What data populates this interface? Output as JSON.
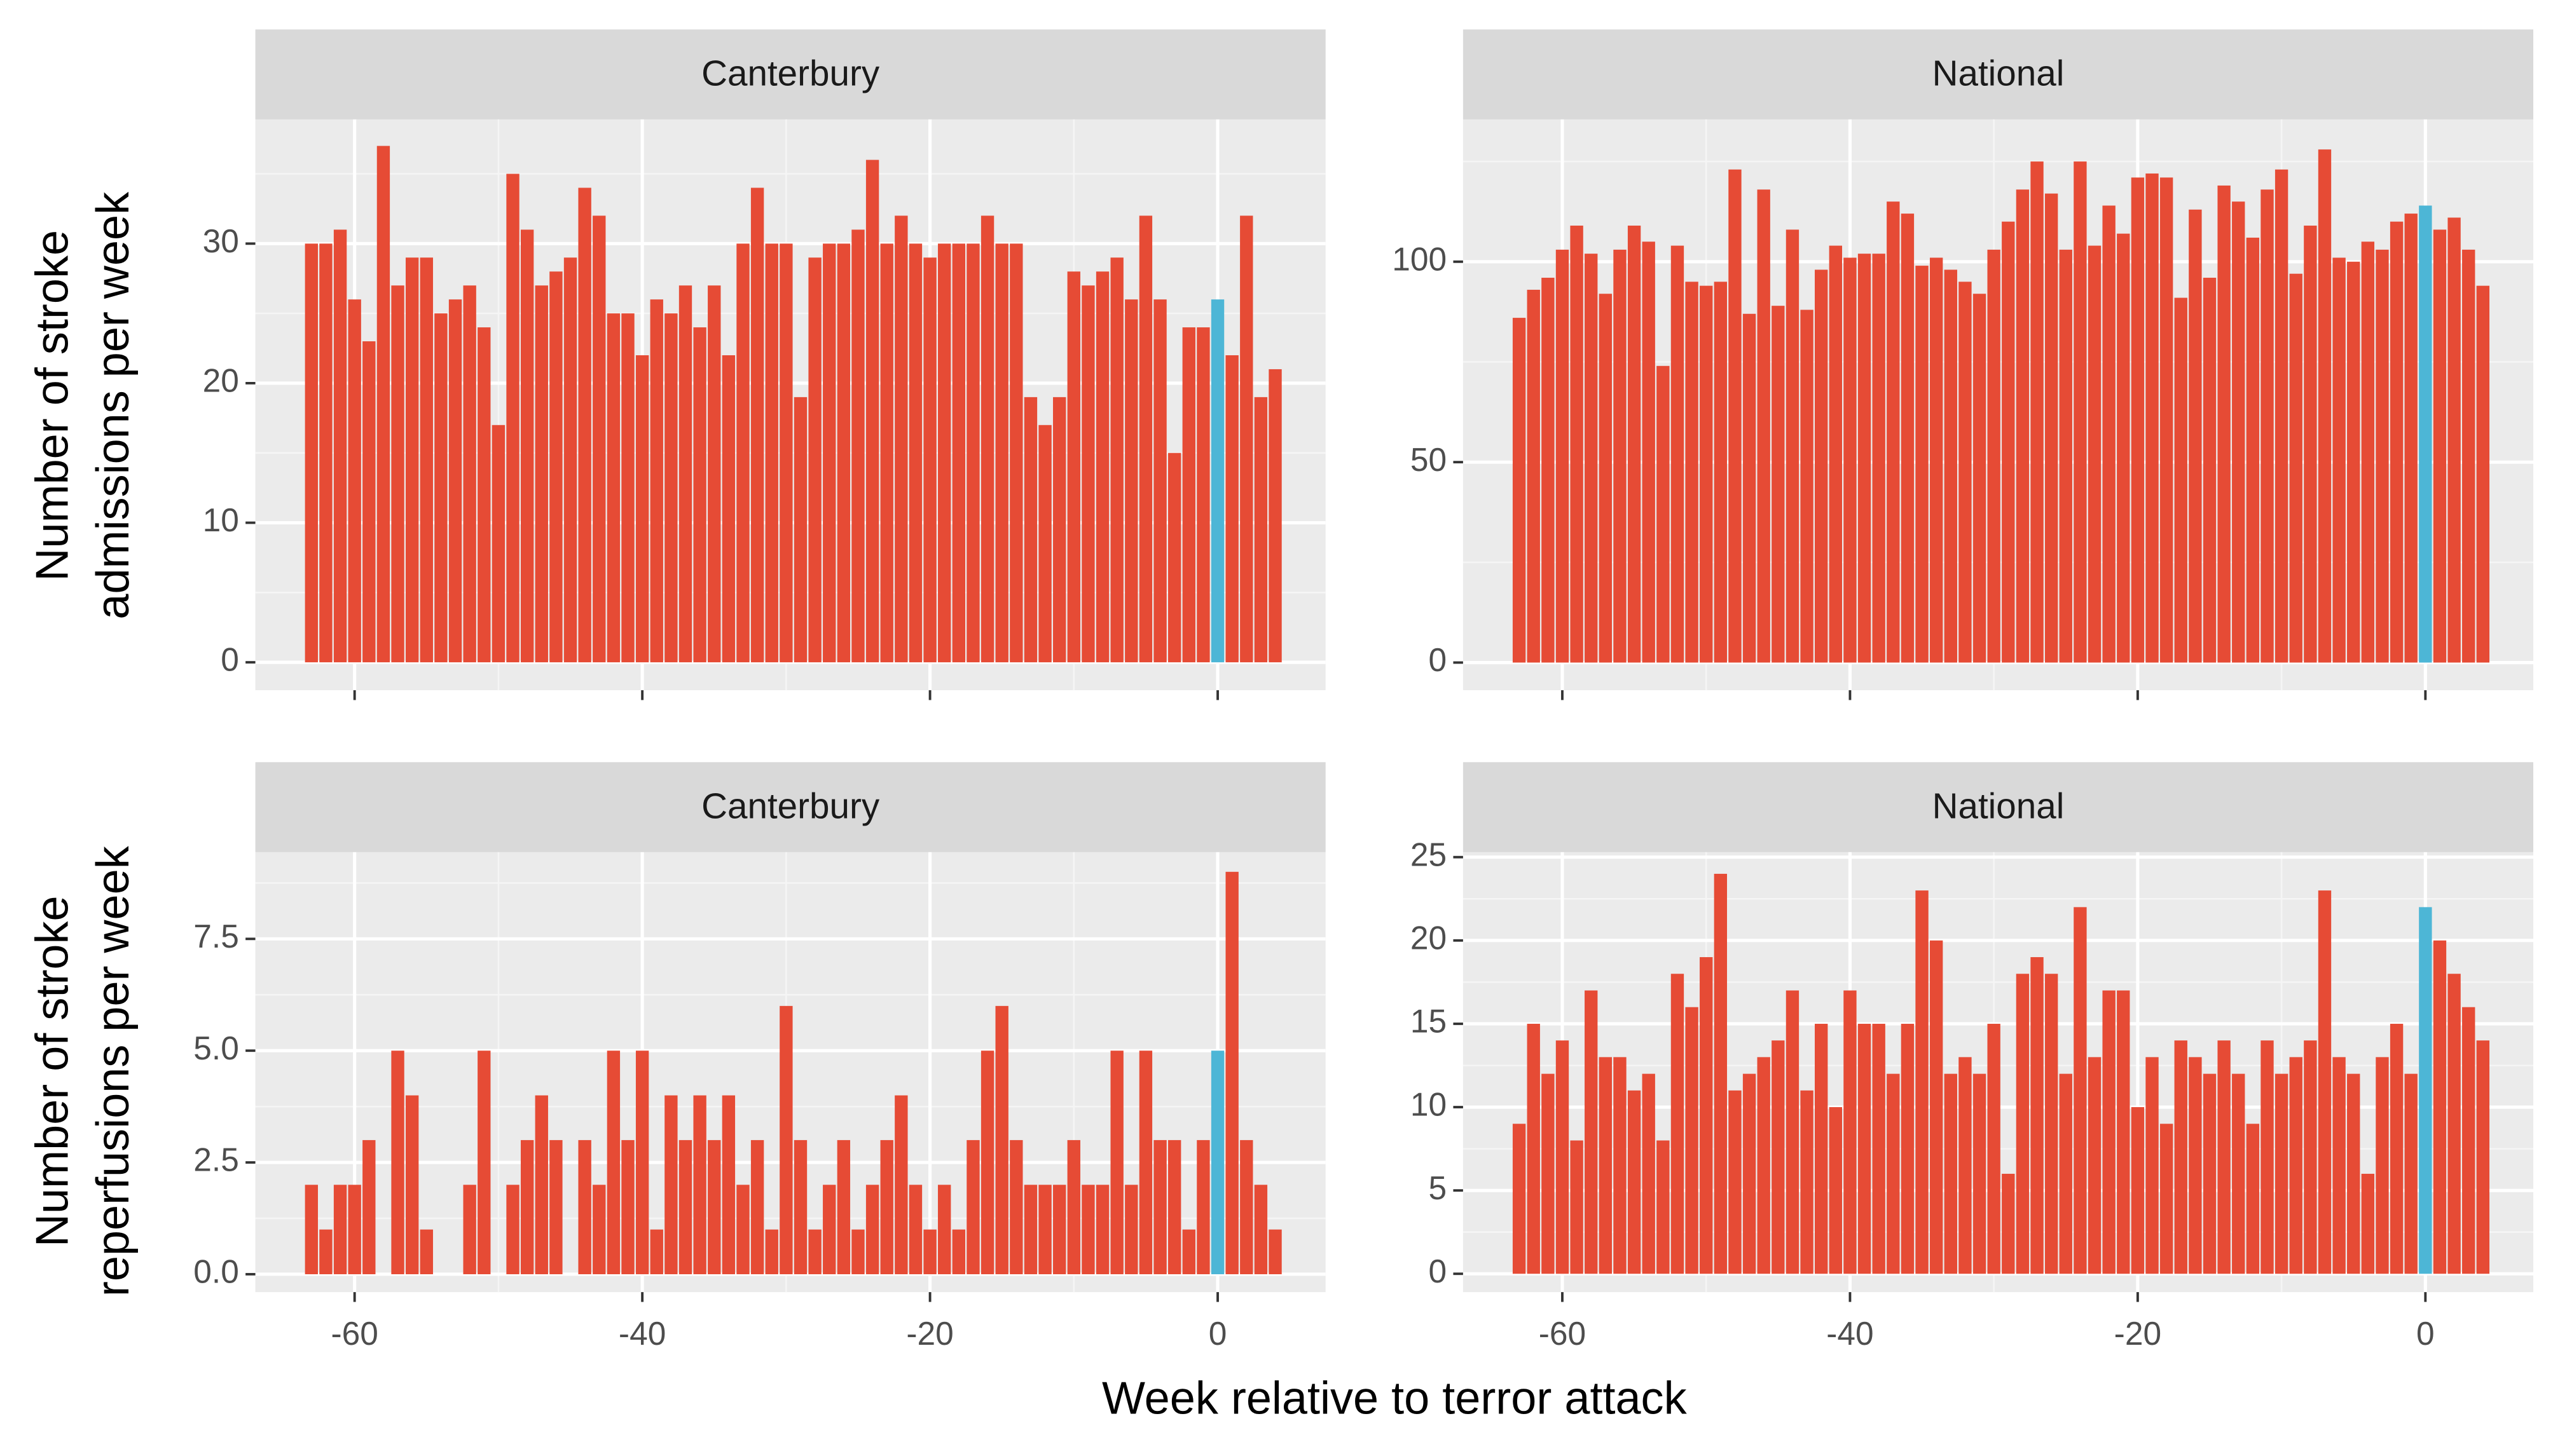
{
  "xlabel": "Week relative to terror attack",
  "chart_data": [
    {
      "type": "bar",
      "strip": "Canterbury",
      "ylabel": [
        "Number of stroke",
        "admissions per week"
      ],
      "x": [
        -63,
        -62,
        -61,
        -60,
        -59,
        -58,
        -57,
        -56,
        -55,
        -54,
        -53,
        -52,
        -51,
        -50,
        -49,
        -48,
        -47,
        -46,
        -45,
        -44,
        -43,
        -42,
        -41,
        -40,
        -39,
        -38,
        -37,
        -36,
        -35,
        -34,
        -33,
        -32,
        -31,
        -30,
        -29,
        -28,
        -27,
        -26,
        -25,
        -24,
        -23,
        -22,
        -21,
        -20,
        -19,
        -18,
        -17,
        -16,
        -15,
        -14,
        -13,
        -12,
        -11,
        -10,
        -9,
        -8,
        -7,
        -6,
        -5,
        -4,
        -3,
        -2,
        -1,
        0,
        1,
        2,
        3,
        4
      ],
      "values": [
        30,
        30,
        31,
        26,
        23,
        37,
        27,
        29,
        29,
        25,
        26,
        27,
        24,
        17,
        35,
        31,
        27,
        28,
        29,
        34,
        32,
        25,
        25,
        22,
        26,
        25,
        27,
        24,
        27,
        22,
        30,
        34,
        30,
        30,
        19,
        29,
        30,
        30,
        31,
        36,
        30,
        32,
        30,
        29,
        30,
        30,
        30,
        32,
        30,
        30,
        19,
        17,
        19,
        28,
        27,
        28,
        29,
        26,
        32,
        26,
        15,
        24,
        24,
        26,
        22,
        32,
        19,
        21
      ],
      "color": "#e64b35",
      "highlight_x": 0,
      "highlight_color": "#4db6d6",
      "xlim": [
        -66.9,
        7.5
      ],
      "xticks": [
        -60,
        -40,
        -20,
        0
      ],
      "ylim": [
        -2,
        38.9
      ],
      "yticks": [
        0,
        10,
        20,
        30
      ],
      "grid": true
    },
    {
      "type": "bar",
      "strip": "National",
      "x": [
        -63,
        -62,
        -61,
        -60,
        -59,
        -58,
        -57,
        -56,
        -55,
        -54,
        -53,
        -52,
        -51,
        -50,
        -49,
        -48,
        -47,
        -46,
        -45,
        -44,
        -43,
        -42,
        -41,
        -40,
        -39,
        -38,
        -37,
        -36,
        -35,
        -34,
        -33,
        -32,
        -31,
        -30,
        -29,
        -28,
        -27,
        -26,
        -25,
        -24,
        -23,
        -22,
        -21,
        -20,
        -19,
        -18,
        -17,
        -16,
        -15,
        -14,
        -13,
        -12,
        -11,
        -10,
        -9,
        -8,
        -7,
        -6,
        -5,
        -4,
        -3,
        -2,
        -1,
        0,
        1,
        2,
        3,
        4
      ],
      "values": [
        86,
        93,
        96,
        103,
        109,
        102,
        92,
        103,
        109,
        105,
        74,
        104,
        95,
        94,
        95,
        123,
        87,
        118,
        89,
        108,
        88,
        98,
        104,
        101,
        102,
        102,
        115,
        112,
        99,
        101,
        98,
        95,
        92,
        103,
        110,
        118,
        125,
        117,
        103,
        125,
        104,
        114,
        107,
        121,
        122,
        121,
        91,
        113,
        96,
        119,
        115,
        106,
        118,
        123,
        97,
        109,
        128,
        101,
        100,
        105,
        103,
        110,
        112,
        114,
        108,
        111,
        103,
        94
      ],
      "color": "#e64b35",
      "highlight_x": 0,
      "highlight_color": "#4db6d6",
      "xlim": [
        -66.9,
        7.5
      ],
      "xticks": [
        -60,
        -40,
        -20,
        0
      ],
      "ylim": [
        -6.9,
        135.5
      ],
      "yticks": [
        0,
        50,
        100
      ],
      "grid": true
    },
    {
      "type": "bar",
      "strip": "Canterbury",
      "ylabel": [
        "Number of stroke",
        "reperfusions per week"
      ],
      "x": [
        -63,
        -62,
        -61,
        -60,
        -59,
        -58,
        -57,
        -56,
        -55,
        -54,
        -53,
        -52,
        -51,
        -50,
        -49,
        -48,
        -47,
        -46,
        -45,
        -44,
        -43,
        -42,
        -41,
        -40,
        -39,
        -38,
        -37,
        -36,
        -35,
        -34,
        -33,
        -32,
        -31,
        -30,
        -29,
        -28,
        -27,
        -26,
        -25,
        -24,
        -23,
        -22,
        -21,
        -20,
        -19,
        -18,
        -17,
        -16,
        -15,
        -14,
        -13,
        -12,
        -11,
        -10,
        -9,
        -8,
        -7,
        -6,
        -5,
        -4,
        -3,
        -2,
        -1,
        0,
        1,
        2,
        3,
        4
      ],
      "values": [
        2,
        1,
        2,
        2,
        3,
        0,
        5,
        4,
        1,
        0,
        0,
        2,
        5,
        0,
        2,
        3,
        4,
        3,
        0,
        3,
        2,
        5,
        3,
        5,
        1,
        4,
        3,
        4,
        3,
        4,
        2,
        3,
        1,
        6,
        3,
        1,
        2,
        3,
        1,
        2,
        3,
        4,
        2,
        1,
        2,
        1,
        3,
        5,
        6,
        3,
        2,
        2,
        2,
        3,
        2,
        2,
        5,
        2,
        5,
        3,
        3,
        1,
        3,
        5,
        9,
        3,
        2,
        1
      ],
      "color": "#e64b35",
      "highlight_x": 0,
      "highlight_color": "#4db6d6",
      "xlim": [
        -66.9,
        7.5
      ],
      "xticks": [
        -60,
        -40,
        -20,
        0
      ],
      "ylim": [
        -0.4,
        9.44
      ],
      "yticks": [
        {
          "value": 0,
          "label": "0.0"
        },
        2.5,
        {
          "value": 5,
          "label": "5.0"
        },
        7.5
      ],
      "grid": true
    },
    {
      "type": "bar",
      "strip": "National",
      "x": [
        -63,
        -62,
        -61,
        -60,
        -59,
        -58,
        -57,
        -56,
        -55,
        -54,
        -53,
        -52,
        -51,
        -50,
        -49,
        -48,
        -47,
        -46,
        -45,
        -44,
        -43,
        -42,
        -41,
        -40,
        -39,
        -38,
        -37,
        -36,
        -35,
        -34,
        -33,
        -32,
        -31,
        -30,
        -29,
        -28,
        -27,
        -26,
        -25,
        -24,
        -23,
        -22,
        -21,
        -20,
        -19,
        -18,
        -17,
        -16,
        -15,
        -14,
        -13,
        -12,
        -11,
        -10,
        -9,
        -8,
        -7,
        -6,
        -5,
        -4,
        -3,
        -2,
        -1,
        0,
        1,
        2,
        3,
        4
      ],
      "values": [
        9,
        15,
        12,
        14,
        8,
        17,
        13,
        13,
        11,
        12,
        8,
        18,
        16,
        19,
        24,
        11,
        12,
        13,
        14,
        17,
        11,
        15,
        10,
        17,
        15,
        15,
        12,
        15,
        23,
        20,
        12,
        13,
        12,
        15,
        6,
        18,
        19,
        18,
        12,
        22,
        13,
        17,
        17,
        10,
        13,
        9,
        14,
        13,
        12,
        14,
        12,
        9,
        14,
        12,
        13,
        14,
        23,
        13,
        12,
        6,
        13,
        15,
        12,
        22,
        20,
        18,
        16,
        14
      ],
      "color": "#e64b35",
      "highlight_x": 0,
      "highlight_color": "#4db6d6",
      "xlim": [
        -66.9,
        7.5
      ],
      "xticks": [
        -60,
        -40,
        -20,
        0
      ],
      "ylim": [
        -1.1,
        25.3
      ],
      "yticks": [
        0,
        5,
        10,
        15,
        20,
        25
      ],
      "grid": true
    }
  ]
}
